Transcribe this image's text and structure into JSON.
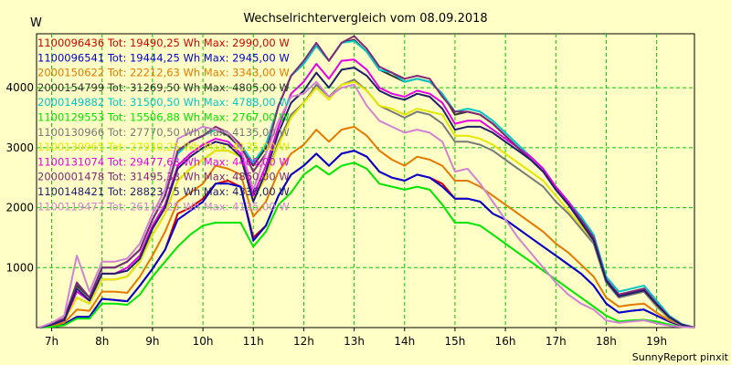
{
  "chart_data": {
    "type": "line",
    "title": "Wechselrichtervergleich vom 08.09.2018",
    "ylabel": "W",
    "xlabel": "",
    "footer": "SunnyReport pinxit",
    "ylim": [
      0,
      4900
    ],
    "xlim": [
      6.7,
      19.75
    ],
    "grid": true,
    "legend_position": "top-left",
    "x_ticks": [
      7,
      8,
      9,
      10,
      11,
      12,
      13,
      14,
      15,
      16,
      17,
      18,
      19
    ],
    "x_tick_labels": [
      "7h",
      "8h",
      "9h",
      "10h",
      "11h",
      "12h",
      "13h",
      "14h",
      "15h",
      "16h",
      "17h",
      "18h",
      "19h"
    ],
    "y_ticks": [
      1000,
      2000,
      3000,
      4000
    ],
    "y_tick_labels": [
      "1000",
      "2000",
      "3000",
      "4000"
    ],
    "x": [
      6.75,
      7.0,
      7.25,
      7.5,
      7.75,
      8.0,
      8.25,
      8.5,
      8.75,
      9.0,
      9.25,
      9.5,
      9.75,
      10.0,
      10.25,
      10.5,
      10.75,
      11.0,
      11.25,
      11.5,
      11.75,
      12.0,
      12.25,
      12.5,
      12.75,
      13.0,
      13.25,
      13.5,
      13.75,
      14.0,
      14.25,
      14.5,
      14.75,
      15.0,
      15.25,
      15.5,
      15.75,
      16.0,
      16.25,
      16.5,
      16.75,
      17.0,
      17.25,
      17.5,
      17.75,
      18.0,
      18.25,
      18.5,
      18.75,
      19.0,
      19.25,
      19.5,
      19.75
    ],
    "series": [
      {
        "name": "1100096436",
        "legend": "1100096436 Tot: 19490,25 Wh Max: 2990,00 W",
        "color": "#d20000",
        "values": [
          0,
          20,
          60,
          180,
          180,
          480,
          460,
          440,
          700,
          980,
          1300,
          1900,
          2000,
          2150,
          2400,
          2450,
          2350,
          1500,
          1700,
          2200,
          2550,
          2700,
          2900,
          2700,
          2900,
          2950,
          2850,
          2600,
          2500,
          2450,
          2550,
          2500,
          2400,
          2150,
          2150,
          2100,
          1900,
          1800,
          1650,
          1500,
          1350,
          1200,
          1050,
          900,
          700,
          400,
          250,
          280,
          300,
          200,
          100,
          30,
          0
        ]
      },
      {
        "name": "1100096541",
        "legend": "1100096541 Tot: 19444,25 Wh Max: 2945,00 W",
        "color": "#0000d2",
        "values": [
          0,
          20,
          60,
          180,
          180,
          480,
          460,
          440,
          700,
          980,
          1300,
          1800,
          1950,
          2100,
          2400,
          2400,
          2350,
          1450,
          1700,
          2200,
          2550,
          2700,
          2900,
          2700,
          2900,
          2950,
          2850,
          2600,
          2500,
          2450,
          2550,
          2500,
          2350,
          2150,
          2150,
          2100,
          1900,
          1800,
          1650,
          1500,
          1350,
          1200,
          1050,
          900,
          700,
          400,
          250,
          280,
          300,
          200,
          100,
          30,
          0
        ]
      },
      {
        "name": "2000150622",
        "legend": "2000150622 Tot: 22212,63 Wh Max: 3343,00 W",
        "color": "#e67800",
        "values": [
          0,
          30,
          80,
          300,
          280,
          600,
          600,
          580,
          850,
          1200,
          1600,
          2100,
          2250,
          2400,
          2700,
          2650,
          2550,
          1850,
          2100,
          2600,
          2900,
          3050,
          3300,
          3100,
          3300,
          3350,
          3200,
          2950,
          2800,
          2700,
          2850,
          2800,
          2700,
          2450,
          2450,
          2350,
          2200,
          2050,
          1900,
          1750,
          1600,
          1400,
          1250,
          1050,
          850,
          500,
          350,
          380,
          400,
          250,
          120,
          40,
          0
        ]
      },
      {
        "name": "2000154799",
        "legend": "2000154799 Tot: 31269,50 Wh Max: 4805,00 W",
        "color": "#323232",
        "values": [
          0,
          60,
          150,
          700,
          500,
          1000,
          1000,
          1100,
          1300,
          1800,
          2200,
          2900,
          3100,
          3200,
          3300,
          3200,
          3000,
          2700,
          3000,
          3700,
          4200,
          4400,
          4700,
          4450,
          4750,
          4800,
          4600,
          4300,
          4200,
          4100,
          4150,
          4100,
          3900,
          3550,
          3600,
          3550,
          3400,
          3200,
          3000,
          2800,
          2600,
          2300,
          2050,
          1800,
          1500,
          800,
          550,
          600,
          650,
          400,
          180,
          50,
          0
        ]
      },
      {
        "name": "2000149882",
        "legend": "2000149882 Tot: 31500,50 Wh Max: 4788,00 W",
        "color": "#00c8c8",
        "values": [
          0,
          60,
          150,
          750,
          500,
          1000,
          1000,
          1100,
          1300,
          1800,
          2200,
          2900,
          3100,
          3200,
          3300,
          3250,
          3050,
          2750,
          3050,
          3700,
          4200,
          4400,
          4700,
          4450,
          4750,
          4780,
          4600,
          4300,
          4250,
          4100,
          4150,
          4100,
          3900,
          3600,
          3650,
          3600,
          3450,
          3250,
          3050,
          2850,
          2650,
          2350,
          2100,
          1850,
          1550,
          850,
          600,
          650,
          700,
          450,
          200,
          60,
          0
        ]
      },
      {
        "name": "1100129553",
        "legend": "1100129553 Tot: 15506,88 Wh Max: 2767,00 W",
        "color": "#00e600",
        "values": [
          0,
          10,
          40,
          150,
          150,
          400,
          400,
          380,
          550,
          850,
          1100,
          1350,
          1550,
          1700,
          1750,
          1750,
          1750,
          1350,
          1600,
          2050,
          2250,
          2550,
          2700,
          2550,
          2700,
          2750,
          2650,
          2400,
          2350,
          2300,
          2350,
          2300,
          2050,
          1750,
          1750,
          1700,
          1550,
          1400,
          1250,
          1100,
          950,
          800,
          650,
          500,
          350,
          200,
          100,
          120,
          130,
          100,
          50,
          10,
          0
        ]
      },
      {
        "name": "1100130966",
        "legend": "1100130966 Tot: 27770,50 Wh Max: 4135,00 W",
        "color": "#787878",
        "values": [
          0,
          50,
          120,
          500,
          400,
          800,
          800,
          850,
          1100,
          1550,
          1900,
          2450,
          2650,
          2800,
          2950,
          2950,
          2850,
          2200,
          2500,
          3100,
          3550,
          3750,
          4050,
          3850,
          4050,
          4135,
          3950,
          3700,
          3600,
          3500,
          3600,
          3550,
          3400,
          3100,
          3100,
          3050,
          2950,
          2800,
          2650,
          2500,
          2350,
          2100,
          1900,
          1650,
          1400,
          750,
          500,
          550,
          600,
          350,
          150,
          40,
          0
        ]
      },
      {
        "name": "1100130965",
        "legend": "1100130965 Tot: 27930,25 Wh Max: 4135,00 W",
        "color": "#e6e600",
        "values": [
          0,
          50,
          120,
          500,
          400,
          800,
          800,
          850,
          1100,
          1550,
          1900,
          2450,
          2650,
          2800,
          2950,
          2950,
          2850,
          2150,
          2500,
          3050,
          3500,
          3750,
          4000,
          3800,
          4050,
          4100,
          3950,
          3700,
          3650,
          3550,
          3650,
          3600,
          3550,
          3200,
          3200,
          3150,
          3050,
          2900,
          2750,
          2600,
          2450,
          2200,
          1950,
          1700,
          1450,
          780,
          520,
          570,
          620,
          370,
          160,
          45,
          0
        ]
      },
      {
        "name": "1100131074",
        "legend": "1100131074 Tot: 29477,63 Wh Max: 4469,00 W",
        "color": "#e600e6",
        "values": [
          0,
          50,
          120,
          600,
          450,
          900,
          900,
          1000,
          1200,
          1700,
          2050,
          2700,
          2900,
          3050,
          3150,
          3100,
          2900,
          2200,
          2700,
          3350,
          3900,
          4100,
          4400,
          4150,
          4450,
          4469,
          4300,
          4000,
          3900,
          3850,
          3950,
          3900,
          3750,
          3400,
          3450,
          3450,
          3300,
          3150,
          3000,
          2850,
          2650,
          2350,
          2100,
          1800,
          1500,
          800,
          550,
          600,
          650,
          400,
          180,
          50,
          0
        ]
      },
      {
        "name": "2000001478",
        "legend": "2000001478 Tot: 31495,38 Wh Max: 4860,00 W",
        "color": "#822878",
        "values": [
          0,
          60,
          150,
          750,
          500,
          1000,
          1000,
          1100,
          1300,
          1800,
          2200,
          2950,
          3100,
          3200,
          3350,
          3250,
          3050,
          2600,
          2900,
          3700,
          4200,
          4450,
          4750,
          4450,
          4750,
          4860,
          4650,
          4350,
          4250,
          4150,
          4200,
          4150,
          3850,
          3600,
          3600,
          3550,
          3400,
          3200,
          3000,
          2800,
          2600,
          2300,
          2050,
          1800,
          1500,
          800,
          550,
          600,
          650,
          400,
          180,
          50,
          0
        ]
      },
      {
        "name": "1100148421",
        "legend": "1100148421 Tot: 28823,75 Wh Max: 4336,00 W",
        "color": "#1e1e6e",
        "values": [
          0,
          50,
          120,
          650,
          450,
          900,
          900,
          950,
          1150,
          1650,
          2000,
          2650,
          2850,
          3000,
          3100,
          3050,
          2850,
          2100,
          2600,
          3250,
          3750,
          3950,
          4250,
          4000,
          4300,
          4336,
          4200,
          3950,
          3850,
          3800,
          3900,
          3850,
          3650,
          3300,
          3350,
          3350,
          3250,
          3100,
          2950,
          2800,
          2600,
          2300,
          2050,
          1750,
          1450,
          780,
          520,
          570,
          620,
          380,
          170,
          45,
          0
        ]
      },
      {
        "name": "1100119477",
        "legend": "1100119477 Tot: 26116,25 Wh Max: 4135,00 W",
        "color": "#d282d2",
        "values": [
          0,
          80,
          200,
          1200,
          600,
          1100,
          1100,
          1150,
          1400,
          1900,
          2300,
          3150,
          3250,
          3350,
          3300,
          3250,
          3000,
          2300,
          2900,
          3450,
          3850,
          3900,
          4100,
          3850,
          4000,
          4050,
          3700,
          3450,
          3350,
          3250,
          3300,
          3250,
          3100,
          2600,
          2650,
          2400,
          2100,
          1800,
          1500,
          1250,
          1000,
          750,
          550,
          400,
          300,
          120,
          80,
          100,
          120,
          70,
          30,
          10,
          0
        ]
      }
    ]
  }
}
